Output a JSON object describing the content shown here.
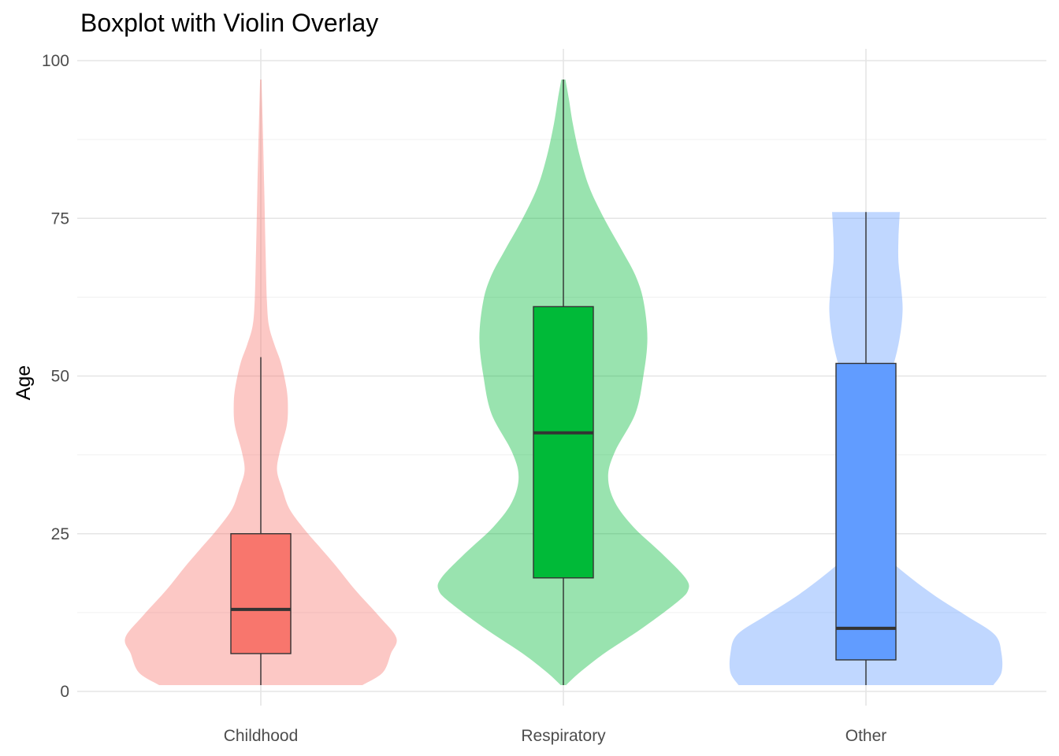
{
  "chart_data": {
    "type": "violin-boxplot",
    "title": "Boxplot with Violin Overlay",
    "xlabel": "",
    "ylabel": "Age",
    "ylim": [
      0,
      100
    ],
    "yticks": [
      0,
      25,
      50,
      75,
      100
    ],
    "grid": true,
    "categories": [
      "Childhood",
      "Respiratory",
      "Other"
    ],
    "colors": [
      "#F8766D",
      "#00BA38",
      "#619CFF"
    ],
    "groups": [
      {
        "category": "Childhood",
        "box": {
          "lower_whisker": 1,
          "q1": 6,
          "median": 13,
          "q3": 25,
          "upper_whisker": 53
        },
        "violin": {
          "min": 1,
          "max": 97,
          "profile": [
            [
              1,
              0.75
            ],
            [
              3,
              0.9
            ],
            [
              6,
              0.96
            ],
            [
              8.5,
              1.0
            ],
            [
              12,
              0.87
            ],
            [
              16,
              0.7
            ],
            [
              20,
              0.55
            ],
            [
              23,
              0.43
            ],
            [
              26,
              0.31
            ],
            [
              29,
              0.21
            ],
            [
              32,
              0.16
            ],
            [
              35,
              0.12
            ],
            [
              38,
              0.14
            ],
            [
              42,
              0.19
            ],
            [
              45,
              0.2
            ],
            [
              48,
              0.19
            ],
            [
              52,
              0.15
            ],
            [
              55,
              0.1
            ],
            [
              58,
              0.06
            ],
            [
              62,
              0.045
            ],
            [
              70,
              0.035
            ],
            [
              80,
              0.025
            ],
            [
              90,
              0.014
            ],
            [
              97,
              0.005
            ]
          ]
        }
      },
      {
        "category": "Respiratory",
        "box": {
          "lower_whisker": 1,
          "q1": 18,
          "median": 41,
          "q3": 61,
          "upper_whisker": 97
        },
        "violin": {
          "min": 1,
          "max": 97,
          "profile": [
            [
              1,
              0.02
            ],
            [
              3,
              0.12
            ],
            [
              6,
              0.3
            ],
            [
              10,
              0.58
            ],
            [
              14,
              0.83
            ],
            [
              16,
              0.92
            ],
            [
              18,
              0.9
            ],
            [
              22,
              0.72
            ],
            [
              26,
              0.52
            ],
            [
              30,
              0.38
            ],
            [
              34,
              0.33
            ],
            [
              38,
              0.38
            ],
            [
              44,
              0.53
            ],
            [
              50,
              0.59
            ],
            [
              56,
              0.62
            ],
            [
              62,
              0.59
            ],
            [
              66,
              0.53
            ],
            [
              70,
              0.43
            ],
            [
              75,
              0.3
            ],
            [
              80,
              0.19
            ],
            [
              85,
              0.12
            ],
            [
              90,
              0.07
            ],
            [
              94,
              0.04
            ],
            [
              97,
              0.015
            ]
          ]
        }
      },
      {
        "category": "Other",
        "box": {
          "lower_whisker": 1,
          "q1": 5,
          "median": 10,
          "q3": 52,
          "upper_whisker": 76
        },
        "violin": {
          "min": 1,
          "max": 76,
          "profile": [
            [
              1,
              0.94
            ],
            [
              3,
              1.0
            ],
            [
              6,
              1.0
            ],
            [
              9,
              0.95
            ],
            [
              12,
              0.74
            ],
            [
              15,
              0.52
            ],
            [
              18,
              0.33
            ],
            [
              21,
              0.17
            ],
            [
              24,
              0.08
            ],
            [
              28,
              0.03
            ],
            [
              32,
              0.015
            ],
            [
              36,
              0.02
            ],
            [
              40,
              0.05
            ],
            [
              45,
              0.11
            ],
            [
              50,
              0.18
            ],
            [
              55,
              0.24
            ],
            [
              60,
              0.27
            ],
            [
              64,
              0.26
            ],
            [
              68,
              0.24
            ],
            [
              72,
              0.24
            ],
            [
              76,
              0.25
            ]
          ]
        }
      }
    ]
  }
}
